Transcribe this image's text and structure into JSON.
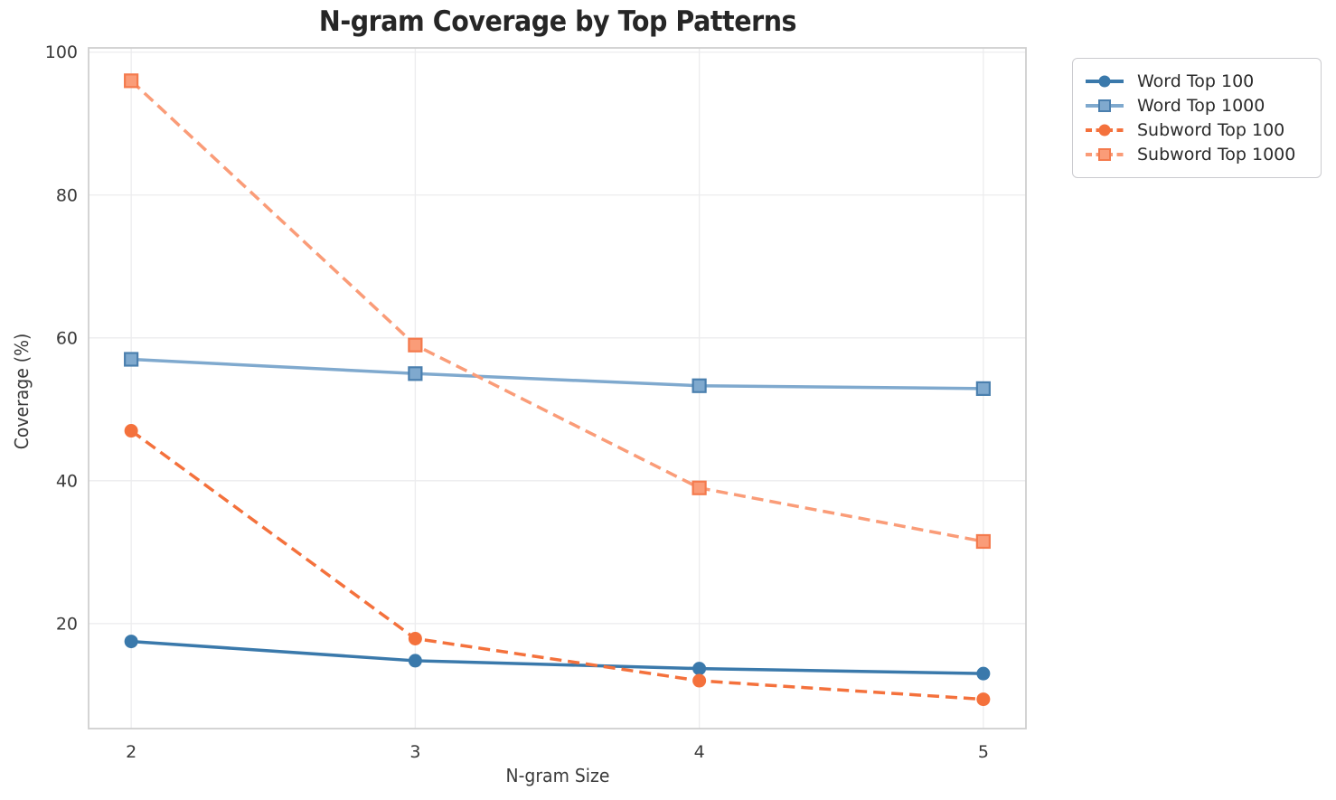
{
  "chart_data": {
    "type": "line",
    "title": "N-gram Coverage by Top Patterns",
    "xlabel": "N-gram Size",
    "ylabel": "Coverage (%)",
    "x": [
      2,
      3,
      4,
      5
    ],
    "x_tick_labels": [
      "2",
      "3",
      "4",
      "5"
    ],
    "y_ticks": [
      20,
      40,
      60,
      80,
      100
    ],
    "y_tick_labels": [
      "20",
      "40",
      "60",
      "80",
      "100"
    ],
    "xlim": [
      1.85,
      5.15
    ],
    "ylim": [
      5.3,
      100.6
    ],
    "grid": true,
    "legend_position": "outside-upper-right",
    "series": [
      {
        "name": "Word Top 100",
        "values": [
          17.5,
          14.8,
          13.7,
          13.0
        ],
        "color": "#3a79ab",
        "marker_edge": "#3a79ab",
        "line_style": "solid",
        "marker": "circle"
      },
      {
        "name": "Word Top 1000",
        "values": [
          57.0,
          55.0,
          53.3,
          52.9
        ],
        "color": "#7fa9ce",
        "marker_edge": "#4a7fae",
        "line_style": "solid",
        "marker": "square"
      },
      {
        "name": "Subword Top 100",
        "values": [
          47.0,
          17.9,
          12.0,
          9.4
        ],
        "color": "#f4713c",
        "marker_edge": "#f4713c",
        "line_style": "dashed",
        "marker": "circle"
      },
      {
        "name": "Subword Top 1000",
        "values": [
          96.0,
          59.0,
          39.0,
          31.5
        ],
        "color": "#fa9c78",
        "marker_edge": "#f47a4d",
        "line_style": "dashed",
        "marker": "square"
      }
    ]
  },
  "style": {
    "grid_color": "#ececee",
    "spine_color": "#cfcfcf",
    "tick_label_color": "#3a3a3a",
    "title_color": "#262626"
  }
}
